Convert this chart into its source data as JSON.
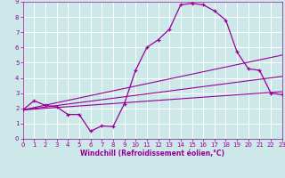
{
  "xlabel": "Windchill (Refroidissement éolien,°C)",
  "bg_color": "#cce8e8",
  "grid_color": "#ffffff",
  "line_color": "#990099",
  "xlim": [
    0,
    23
  ],
  "ylim": [
    0,
    9
  ],
  "xticks": [
    0,
    1,
    2,
    3,
    4,
    5,
    6,
    7,
    8,
    9,
    10,
    11,
    12,
    13,
    14,
    15,
    16,
    17,
    18,
    19,
    20,
    21,
    22,
    23
  ],
  "yticks": [
    0,
    1,
    2,
    3,
    4,
    5,
    6,
    7,
    8,
    9
  ],
  "line1_x": [
    0,
    1,
    2,
    3,
    4,
    5,
    6,
    7,
    8,
    9,
    10,
    11,
    12,
    13,
    14,
    15,
    16,
    17,
    18,
    19,
    20,
    21,
    22,
    23
  ],
  "line1_y": [
    1.9,
    2.5,
    2.2,
    2.1,
    1.6,
    1.6,
    0.5,
    0.85,
    0.8,
    2.3,
    4.5,
    6.0,
    6.5,
    7.2,
    8.8,
    8.9,
    8.8,
    8.4,
    7.8,
    5.7,
    4.6,
    4.5,
    3.0,
    2.9
  ],
  "line2_x": [
    0,
    23
  ],
  "line2_y": [
    1.9,
    3.1
  ],
  "line3_x": [
    0,
    23
  ],
  "line3_y": [
    1.9,
    4.1
  ],
  "line4_x": [
    0,
    23
  ],
  "line4_y": [
    1.9,
    5.5
  ],
  "xlabel_fontsize": 5.5,
  "tick_fontsize": 5
}
